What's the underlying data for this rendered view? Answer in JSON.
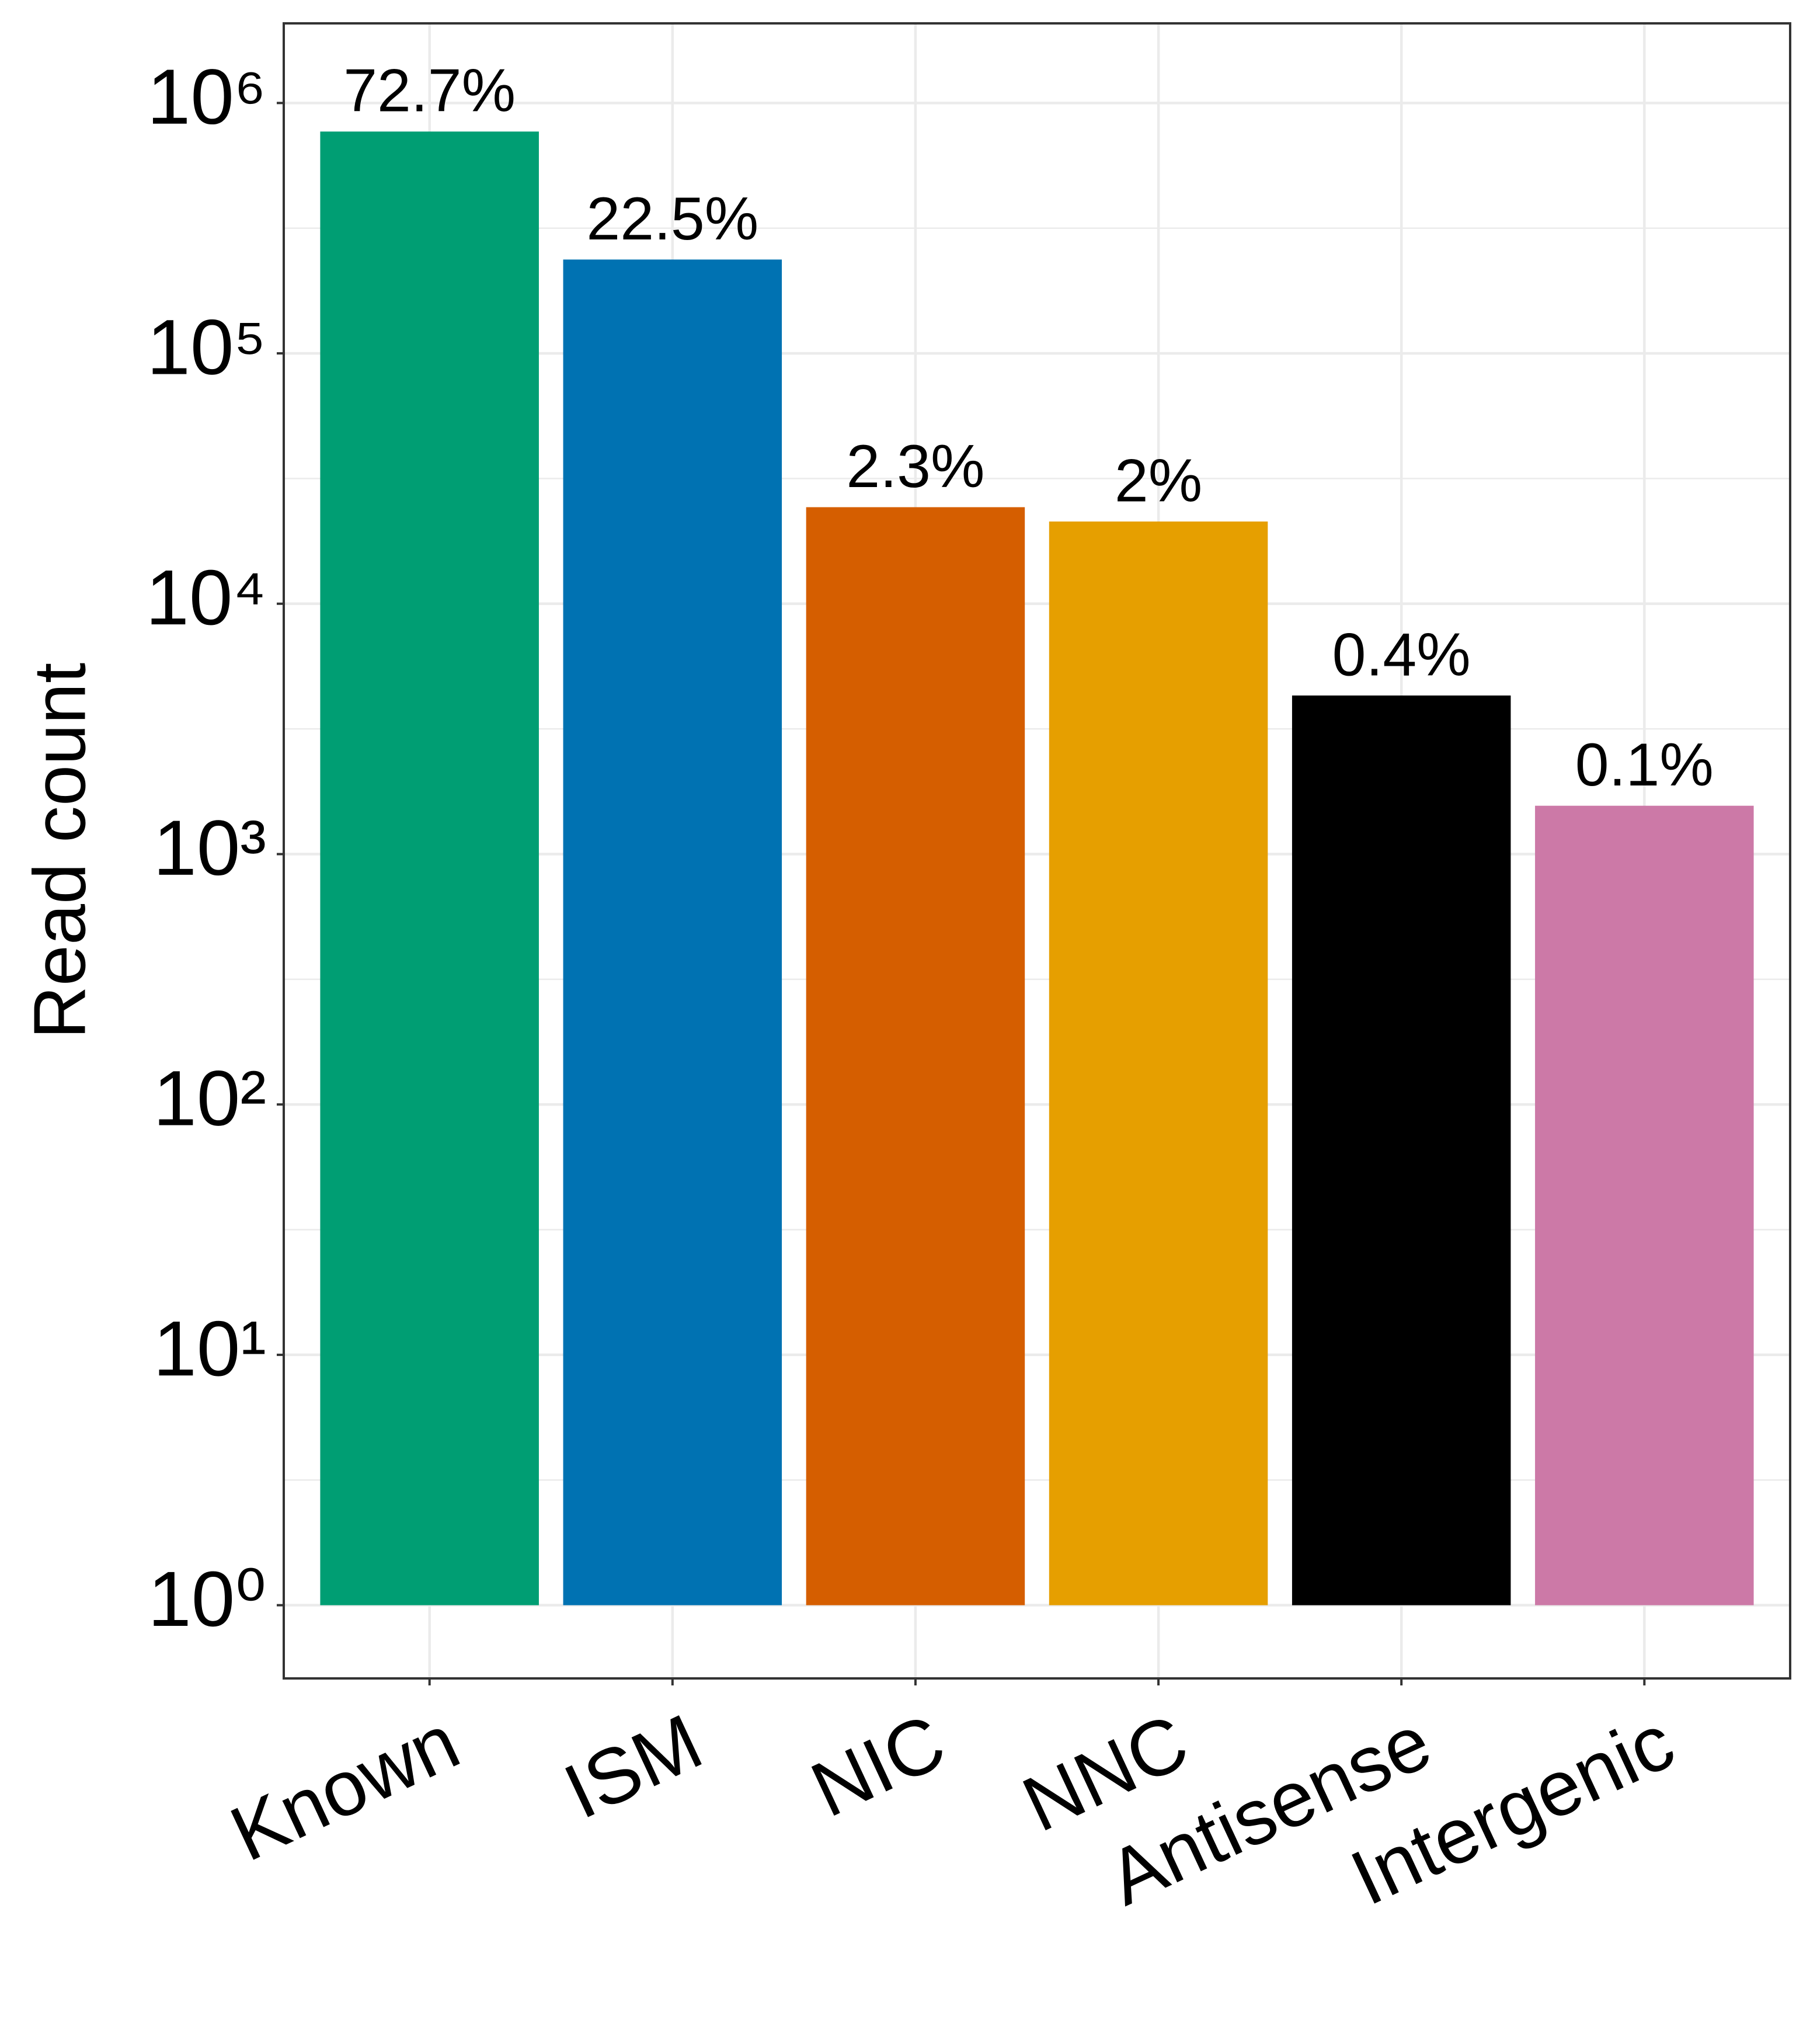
{
  "chart_data": {
    "type": "bar",
    "y_label": "Read count",
    "y_log": true,
    "grid": true,
    "categories": [
      "Known",
      "ISM",
      "NIC",
      "NNC",
      "Antisense",
      "Intergenic"
    ],
    "values": [
      769000,
      237000,
      24300,
      21300,
      4300,
      1560
    ],
    "colors": [
      "#009E73",
      "#0072B2",
      "#D55E00",
      "#E69F00",
      "#000000",
      "#CC79A7"
    ],
    "shares": [
      72.7,
      22.5,
      2.3,
      2,
      0.4,
      0.1
    ],
    "share_labels": [
      "72.7%",
      "22.5%",
      "2.3%",
      "2%",
      "0.4%",
      "0.1%"
    ],
    "ylim": [
      0.51,
      2080000
    ],
    "yticks": [
      {
        "value": 1,
        "label": "10⁰"
      },
      {
        "value": 10,
        "label": "10¹"
      },
      {
        "value": 100,
        "label": "10²"
      },
      {
        "value": 1000,
        "label": "10³"
      },
      {
        "value": 10000,
        "label": "10⁴"
      },
      {
        "value": 100000,
        "label": "10⁵"
      },
      {
        "value": 1000000,
        "label": "10⁶"
      }
    ]
  }
}
